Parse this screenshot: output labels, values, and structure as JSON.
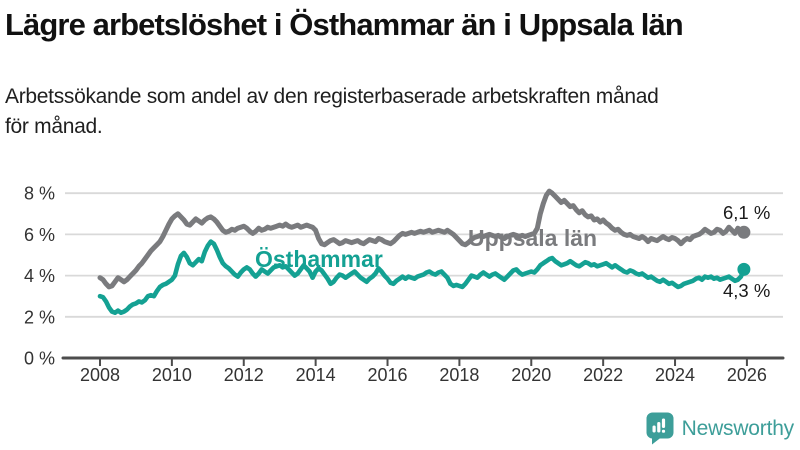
{
  "title": "Lägre arbetslöshet i Östhammar än i Uppsala län",
  "subtitle_lines": [
    "Arbetssökande som andel av den registerbaserade arbetskraften månad",
    "för månad."
  ],
  "footer": {
    "brand": "Newsworthy"
  },
  "colors": {
    "uppsala": "#7a7b7e",
    "osthammar": "#14a193",
    "grid": "#d9d9d9",
    "axis": "#4d4d4d",
    "axis_text": "#333333",
    "label_text": "#1a1a1a",
    "brand_teal": "#3d9e99"
  },
  "chart_data": {
    "type": "line",
    "unit": "%",
    "x_start": {
      "year": 2008,
      "month": 1
    },
    "points_per_year": 12,
    "x_tick_years": [
      2008,
      2010,
      2012,
      2014,
      2016,
      2018,
      2020,
      2022,
      2024,
      2026
    ],
    "x_tick_labels": [
      "2008",
      "2010",
      "2012",
      "2014",
      "2016",
      "2018",
      "2020",
      "2022",
      "2024",
      "2026"
    ],
    "y_tick_values": [
      8,
      6,
      4,
      2,
      0
    ],
    "y_tick_labels": [
      "8 %",
      "6 %",
      "4 %",
      "2 %",
      "0 %"
    ],
    "ylim": [
      0,
      8.6
    ],
    "grid": true,
    "series": [
      {
        "name": "Uppsala län",
        "color": "#7a7b7e",
        "end_label": "6,1 %",
        "end_value": 6.1,
        "values": [
          3.9,
          3.8,
          3.6,
          3.45,
          3.5,
          3.7,
          3.9,
          3.8,
          3.7,
          3.8,
          3.95,
          4.1,
          4.25,
          4.45,
          4.6,
          4.8,
          5.0,
          5.2,
          5.35,
          5.5,
          5.65,
          5.9,
          6.2,
          6.5,
          6.75,
          6.9,
          7.0,
          6.85,
          6.7,
          6.5,
          6.45,
          6.6,
          6.75,
          6.65,
          6.55,
          6.7,
          6.8,
          6.85,
          6.75,
          6.6,
          6.4,
          6.2,
          6.1,
          6.15,
          6.25,
          6.2,
          6.3,
          6.35,
          6.4,
          6.3,
          6.15,
          6.05,
          6.15,
          6.3,
          6.2,
          6.25,
          6.35,
          6.3,
          6.35,
          6.4,
          6.45,
          6.4,
          6.5,
          6.4,
          6.35,
          6.4,
          6.45,
          6.35,
          6.4,
          6.45,
          6.4,
          6.35,
          6.2,
          5.8,
          5.55,
          5.5,
          5.6,
          5.7,
          5.75,
          5.65,
          5.55,
          5.6,
          5.7,
          5.65,
          5.6,
          5.65,
          5.7,
          5.6,
          5.55,
          5.65,
          5.75,
          5.7,
          5.65,
          5.8,
          5.75,
          5.65,
          5.6,
          5.55,
          5.65,
          5.8,
          5.95,
          6.05,
          6.0,
          6.05,
          6.1,
          6.05,
          6.1,
          6.15,
          6.1,
          6.15,
          6.2,
          6.1,
          6.15,
          6.2,
          6.15,
          6.1,
          6.2,
          6.1,
          6.0,
          5.85,
          5.7,
          5.55,
          5.5,
          5.6,
          5.75,
          5.85,
          5.9,
          5.95,
          5.9,
          5.95,
          6.0,
          5.95,
          5.9,
          5.95,
          5.85,
          5.8,
          5.9,
          5.95,
          6.0,
          5.95,
          5.9,
          5.95,
          5.9,
          5.95,
          6.0,
          6.05,
          6.3,
          7.0,
          7.5,
          7.9,
          8.1,
          8.0,
          7.85,
          7.7,
          7.55,
          7.65,
          7.5,
          7.35,
          7.4,
          7.2,
          7.05,
          7.15,
          6.95,
          6.85,
          6.9,
          6.7,
          6.75,
          6.6,
          6.7,
          6.55,
          6.45,
          6.3,
          6.2,
          6.25,
          6.1,
          6.0,
          5.95,
          6.0,
          5.9,
          5.85,
          5.8,
          5.9,
          5.8,
          5.65,
          5.8,
          5.75,
          5.7,
          5.8,
          5.9,
          5.8,
          5.75,
          5.85,
          5.8,
          5.7,
          5.55,
          5.7,
          5.8,
          5.75,
          5.9,
          5.95,
          6.0,
          6.1,
          6.25,
          6.15,
          6.05,
          6.1,
          6.25,
          6.2,
          6.05,
          6.15,
          6.35,
          6.2,
          6.05,
          6.3,
          6.15,
          6.1
        ]
      },
      {
        "name": "Östhammar",
        "color": "#14a193",
        "end_label": "4,3 %",
        "end_value": 4.3,
        "values": [
          3.0,
          2.95,
          2.75,
          2.45,
          2.25,
          2.2,
          2.3,
          2.2,
          2.25,
          2.35,
          2.5,
          2.6,
          2.65,
          2.75,
          2.7,
          2.8,
          3.0,
          3.05,
          3.0,
          3.25,
          3.45,
          3.55,
          3.6,
          3.7,
          3.8,
          4.0,
          4.55,
          4.95,
          5.1,
          4.9,
          4.6,
          4.5,
          4.65,
          4.8,
          4.7,
          5.15,
          5.45,
          5.65,
          5.55,
          5.25,
          4.9,
          4.6,
          4.45,
          4.35,
          4.2,
          4.05,
          3.95,
          4.15,
          4.3,
          4.4,
          4.3,
          4.1,
          3.95,
          4.1,
          4.3,
          4.2,
          4.1,
          4.25,
          4.4,
          4.45,
          4.5,
          4.4,
          4.45,
          4.3,
          4.15,
          4.0,
          4.1,
          4.3,
          4.5,
          4.35,
          4.2,
          3.9,
          4.2,
          4.35,
          4.25,
          4.05,
          3.85,
          3.6,
          3.7,
          3.9,
          4.05,
          4.0,
          3.9,
          4.0,
          4.1,
          4.2,
          4.05,
          3.9,
          3.8,
          3.7,
          3.85,
          3.95,
          4.1,
          4.35,
          4.2,
          4.0,
          3.85,
          3.65,
          3.6,
          3.75,
          3.85,
          3.95,
          3.85,
          3.95,
          3.9,
          3.85,
          3.95,
          4.0,
          4.05,
          4.15,
          4.2,
          4.1,
          4.05,
          4.15,
          4.2,
          4.05,
          3.9,
          3.6,
          3.5,
          3.55,
          3.5,
          3.45,
          3.6,
          3.8,
          4.0,
          3.95,
          3.9,
          4.05,
          4.15,
          4.05,
          3.95,
          4.05,
          4.1,
          4.0,
          3.9,
          3.8,
          3.95,
          4.1,
          4.25,
          4.3,
          4.15,
          4.05,
          4.1,
          4.15,
          4.2,
          4.15,
          4.3,
          4.5,
          4.6,
          4.7,
          4.8,
          4.85,
          4.7,
          4.6,
          4.5,
          4.55,
          4.6,
          4.7,
          4.6,
          4.5,
          4.45,
          4.55,
          4.65,
          4.6,
          4.5,
          4.55,
          4.45,
          4.5,
          4.55,
          4.6,
          4.5,
          4.4,
          4.5,
          4.4,
          4.3,
          4.2,
          4.15,
          4.25,
          4.2,
          4.1,
          4.05,
          4.1,
          4.0,
          3.9,
          3.95,
          3.85,
          3.75,
          3.7,
          3.8,
          3.7,
          3.6,
          3.65,
          3.55,
          3.45,
          3.5,
          3.6,
          3.65,
          3.7,
          3.75,
          3.85,
          3.9,
          3.8,
          3.95,
          3.9,
          3.95,
          3.85,
          3.9,
          3.8,
          3.85,
          3.9,
          3.95,
          3.85,
          3.75,
          3.8,
          3.95,
          4.3
        ]
      }
    ],
    "legend_position": "inline-labels"
  }
}
